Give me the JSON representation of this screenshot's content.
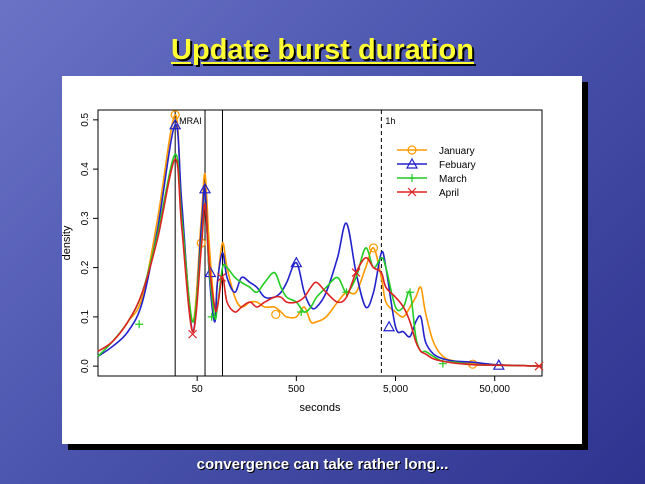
{
  "slide": {
    "title": "Update burst duration",
    "caption": "convergence can take rather long..."
  },
  "chart_data": {
    "type": "line",
    "title": "",
    "xlabel": "seconds",
    "ylabel": "density",
    "x_scale": "log",
    "xlim": [
      5,
      150000
    ],
    "ylim": [
      -0.02,
      0.52
    ],
    "x_ticks": [
      {
        "value": 50,
        "label": "50"
      },
      {
        "value": 500,
        "label": "500"
      },
      {
        "value": 5000,
        "label": "5,000"
      },
      {
        "value": 50000,
        "label": "50,000"
      }
    ],
    "y_ticks": [
      0.0,
      0.1,
      0.2,
      0.3,
      0.4,
      0.5
    ],
    "y_tick_labels": [
      "0.0",
      "0.1",
      "0.2",
      "0.3",
      "0.4",
      "0.5"
    ],
    "grid": false,
    "legend_position": "top-right",
    "vlines": [
      {
        "x": 30,
        "style": "solid",
        "label": "MRAI"
      },
      {
        "x": 60,
        "style": "solid",
        "label": ""
      },
      {
        "x": 90,
        "style": "solid",
        "label": ""
      },
      {
        "x": 3600,
        "style": "dashed",
        "label": "1h"
      }
    ],
    "series": [
      {
        "name": "January",
        "color": "#ff9900",
        "marker": "circle",
        "points": [
          [
            5,
            0.03
          ],
          [
            7,
            0.05
          ],
          [
            10,
            0.09
          ],
          [
            14,
            0.14
          ],
          [
            20,
            0.3
          ],
          [
            30,
            0.51
          ],
          [
            35,
            0.32
          ],
          [
            45,
            0.09
          ],
          [
            55,
            0.3
          ],
          [
            60,
            0.39
          ],
          [
            66,
            0.25
          ],
          [
            75,
            0.12
          ],
          [
            80,
            0.17
          ],
          [
            90,
            0.25
          ],
          [
            100,
            0.2
          ],
          [
            120,
            0.14
          ],
          [
            140,
            0.12
          ],
          [
            170,
            0.13
          ],
          [
            200,
            0.13
          ],
          [
            240,
            0.12
          ],
          [
            300,
            0.12
          ],
          [
            350,
            0.11
          ],
          [
            400,
            0.1
          ],
          [
            500,
            0.1
          ],
          [
            600,
            0.12
          ],
          [
            700,
            0.09
          ],
          [
            800,
            0.09
          ],
          [
            1000,
            0.1
          ],
          [
            1300,
            0.13
          ],
          [
            1600,
            0.15
          ],
          [
            2000,
            0.15
          ],
          [
            2500,
            0.2
          ],
          [
            3000,
            0.24
          ],
          [
            3600,
            0.18
          ],
          [
            4000,
            0.13
          ],
          [
            5000,
            0.11
          ],
          [
            6000,
            0.1
          ],
          [
            7000,
            0.12
          ],
          [
            8000,
            0.14
          ],
          [
            9000,
            0.16
          ],
          [
            10000,
            0.11
          ],
          [
            12000,
            0.05
          ],
          [
            15000,
            0.02
          ],
          [
            20000,
            0.01
          ],
          [
            30000,
            0.005
          ],
          [
            50000,
            0.003
          ],
          [
            100000,
            0.001
          ],
          [
            150000,
            0.0
          ]
        ],
        "markers_at": [
          [
            30,
            0.51
          ],
          [
            55,
            0.25
          ],
          [
            310,
            0.105
          ],
          [
            3000,
            0.24
          ],
          [
            30000,
            0.004
          ]
        ]
      },
      {
        "name": "Febuary",
        "color": "#2222cc",
        "marker": "triangle",
        "points": [
          [
            5,
            0.02
          ],
          [
            7,
            0.04
          ],
          [
            10,
            0.07
          ],
          [
            14,
            0.13
          ],
          [
            20,
            0.28
          ],
          [
            30,
            0.49
          ],
          [
            35,
            0.33
          ],
          [
            45,
            0.07
          ],
          [
            55,
            0.28
          ],
          [
            60,
            0.36
          ],
          [
            66,
            0.19
          ],
          [
            75,
            0.09
          ],
          [
            80,
            0.17
          ],
          [
            90,
            0.23
          ],
          [
            100,
            0.18
          ],
          [
            120,
            0.15
          ],
          [
            140,
            0.18
          ],
          [
            170,
            0.17
          ],
          [
            200,
            0.16
          ],
          [
            240,
            0.14
          ],
          [
            300,
            0.14
          ],
          [
            350,
            0.15
          ],
          [
            400,
            0.17
          ],
          [
            500,
            0.21
          ],
          [
            600,
            0.15
          ],
          [
            700,
            0.12
          ],
          [
            800,
            0.12
          ],
          [
            1000,
            0.15
          ],
          [
            1300,
            0.22
          ],
          [
            1600,
            0.29
          ],
          [
            2000,
            0.19
          ],
          [
            2500,
            0.12
          ],
          [
            3000,
            0.15
          ],
          [
            3600,
            0.23
          ],
          [
            4000,
            0.2
          ],
          [
            5000,
            0.08
          ],
          [
            6000,
            0.07
          ],
          [
            7000,
            0.06
          ],
          [
            8000,
            0.09
          ],
          [
            9000,
            0.1
          ],
          [
            10000,
            0.05
          ],
          [
            12000,
            0.025
          ],
          [
            15000,
            0.015
          ],
          [
            20000,
            0.01
          ],
          [
            30000,
            0.008
          ],
          [
            50000,
            0.003
          ],
          [
            100000,
            0.001
          ],
          [
            150000,
            0.0
          ]
        ],
        "markers_at": [
          [
            30,
            0.49
          ],
          [
            60,
            0.36
          ],
          [
            68,
            0.19
          ],
          [
            500,
            0.21
          ],
          [
            4300,
            0.08
          ],
          [
            55000,
            0.002
          ]
        ]
      },
      {
        "name": "March",
        "color": "#22cc22",
        "marker": "plus",
        "points": [
          [
            5,
            0.02
          ],
          [
            7,
            0.05
          ],
          [
            10,
            0.09
          ],
          [
            14,
            0.15
          ],
          [
            20,
            0.27
          ],
          [
            30,
            0.43
          ],
          [
            35,
            0.3
          ],
          [
            45,
            0.09
          ],
          [
            55,
            0.25
          ],
          [
            60,
            0.33
          ],
          [
            66,
            0.2
          ],
          [
            75,
            0.1
          ],
          [
            80,
            0.12
          ],
          [
            90,
            0.2
          ],
          [
            100,
            0.2
          ],
          [
            120,
            0.18
          ],
          [
            140,
            0.17
          ],
          [
            170,
            0.16
          ],
          [
            200,
            0.15
          ],
          [
            240,
            0.17
          ],
          [
            300,
            0.19
          ],
          [
            350,
            0.16
          ],
          [
            400,
            0.14
          ],
          [
            500,
            0.13
          ],
          [
            600,
            0.11
          ],
          [
            700,
            0.12
          ],
          [
            800,
            0.14
          ],
          [
            1000,
            0.16
          ],
          [
            1300,
            0.18
          ],
          [
            1600,
            0.15
          ],
          [
            2000,
            0.18
          ],
          [
            2500,
            0.24
          ],
          [
            3000,
            0.2
          ],
          [
            3600,
            0.22
          ],
          [
            4000,
            0.2
          ],
          [
            5000,
            0.12
          ],
          [
            6000,
            0.12
          ],
          [
            7000,
            0.15
          ],
          [
            8000,
            0.06
          ],
          [
            9000,
            0.03
          ],
          [
            10000,
            0.03
          ],
          [
            12000,
            0.02
          ],
          [
            15000,
            0.01
          ],
          [
            20000,
            0.008
          ],
          [
            30000,
            0.003
          ],
          [
            50000,
            0.002
          ],
          [
            100000,
            0.001
          ],
          [
            150000,
            0.0
          ]
        ],
        "markers_at": [
          [
            13,
            0.085
          ],
          [
            70,
            0.1
          ],
          [
            560,
            0.11
          ],
          [
            1600,
            0.15
          ],
          [
            7000,
            0.15
          ],
          [
            15000,
            0.005
          ]
        ]
      },
      {
        "name": "April",
        "color": "#dd2222",
        "marker": "cross",
        "points": [
          [
            5,
            0.03
          ],
          [
            7,
            0.05
          ],
          [
            10,
            0.09
          ],
          [
            14,
            0.15
          ],
          [
            20,
            0.26
          ],
          [
            30,
            0.42
          ],
          [
            35,
            0.28
          ],
          [
            45,
            0.07
          ],
          [
            55,
            0.24
          ],
          [
            60,
            0.33
          ],
          [
            66,
            0.21
          ],
          [
            75,
            0.12
          ],
          [
            80,
            0.12
          ],
          [
            90,
            0.18
          ],
          [
            100,
            0.13
          ],
          [
            120,
            0.11
          ],
          [
            140,
            0.12
          ],
          [
            170,
            0.13
          ],
          [
            200,
            0.12
          ],
          [
            240,
            0.13
          ],
          [
            300,
            0.14
          ],
          [
            350,
            0.14
          ],
          [
            400,
            0.13
          ],
          [
            500,
            0.13
          ],
          [
            600,
            0.14
          ],
          [
            700,
            0.16
          ],
          [
            800,
            0.17
          ],
          [
            1000,
            0.15
          ],
          [
            1300,
            0.13
          ],
          [
            1600,
            0.14
          ],
          [
            2000,
            0.19
          ],
          [
            2500,
            0.22
          ],
          [
            3000,
            0.2
          ],
          [
            3600,
            0.19
          ],
          [
            4000,
            0.16
          ],
          [
            5000,
            0.14
          ],
          [
            6000,
            0.12
          ],
          [
            7000,
            0.09
          ],
          [
            8000,
            0.05
          ],
          [
            9000,
            0.03
          ],
          [
            10000,
            0.025
          ],
          [
            12000,
            0.015
          ],
          [
            15000,
            0.01
          ],
          [
            20000,
            0.006
          ],
          [
            30000,
            0.003
          ],
          [
            50000,
            0.002
          ],
          [
            100000,
            0.001
          ],
          [
            150000,
            0.0
          ]
        ],
        "markers_at": [
          [
            45,
            0.065
          ],
          [
            88,
            0.18
          ],
          [
            2000,
            0.19
          ],
          [
            140000,
            0.0
          ]
        ]
      }
    ]
  }
}
